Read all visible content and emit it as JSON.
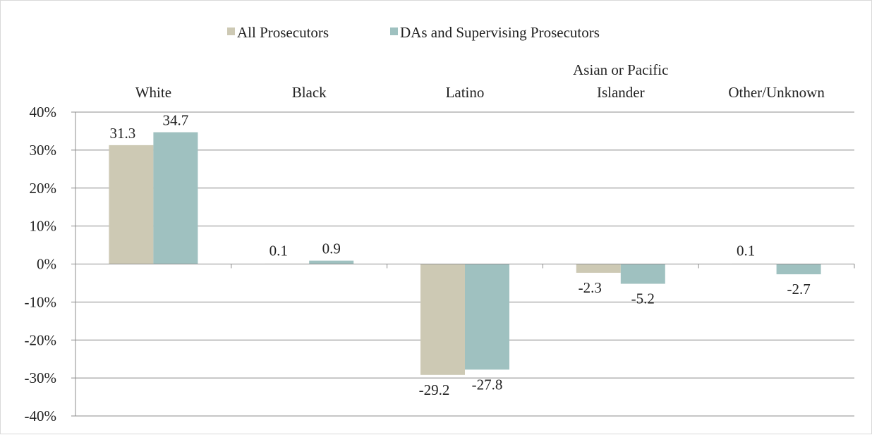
{
  "chart_data": {
    "type": "bar",
    "categories": [
      [
        "White"
      ],
      [
        "Black"
      ],
      [
        "Latino"
      ],
      [
        "Asian or Pacific",
        "Islander"
      ],
      [
        "Other/Unknown"
      ]
    ],
    "series": [
      {
        "name": "All Prosecutors",
        "color": "#cdc9b4",
        "values": [
          31.3,
          0.1,
          -29.2,
          -2.3,
          0.1
        ],
        "labels": [
          "31.3",
          "0.1",
          "-29.2",
          "-2.3",
          "0.1"
        ]
      },
      {
        "name": "DAs and Supervising Prosecutors",
        "color": "#9fc1c0",
        "values": [
          34.7,
          0.9,
          -27.8,
          -5.2,
          -2.7
        ],
        "labels": [
          "34.7",
          "0.9",
          "-27.8",
          "-5.2",
          "-2.7"
        ]
      }
    ],
    "ylim": [
      -40,
      40
    ],
    "yticks": [
      40,
      30,
      20,
      10,
      0,
      -10,
      -20,
      -30,
      -40
    ],
    "ytick_labels": [
      "40%",
      "30%",
      "20%",
      "10%",
      "0%",
      "-10%",
      "-20%",
      "-30%",
      "-40%"
    ],
    "legend_position": "top-center",
    "category_labels_position": "top",
    "grid": true,
    "title": "",
    "xlabel": "",
    "ylabel": ""
  }
}
